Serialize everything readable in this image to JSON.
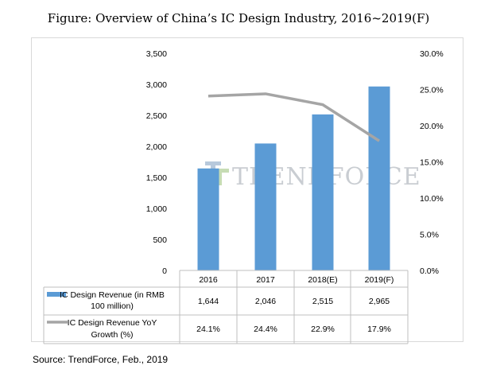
{
  "figure_title": "Figure: Overview of China’s IC Design Industry, 2016~2019(F)",
  "source": "Source: TrendForce, Feb., 2019",
  "watermark": "TRENDFORCE",
  "colors": {
    "bar": "#5b9bd5",
    "line": "#a5a5a5",
    "grid": "#bfbfbf"
  },
  "chart_data": {
    "type": "bar",
    "categories": [
      "2016",
      "2017",
      "2018(E)",
      "2019(F)"
    ],
    "series": [
      {
        "name": "IC Design Revenue (in RMB 100 million)",
        "type": "bar",
        "axis": "left",
        "values": [
          1644,
          2046,
          2515,
          2965
        ],
        "labels": [
          "1,644",
          "2,046",
          "2,515",
          "2,965"
        ]
      },
      {
        "name": "IC Design Revenue YoY Growth (%)",
        "type": "line",
        "axis": "right",
        "values": [
          24.1,
          24.4,
          22.9,
          17.9
        ],
        "labels": [
          "24.1%",
          "24.4%",
          "22.9%",
          "17.9%"
        ]
      }
    ],
    "ylim": [
      0,
      3500
    ],
    "yticks": [
      "0",
      "500",
      "1,000",
      "1,500",
      "2,000",
      "2,500",
      "3,000",
      "3,500"
    ],
    "y2lim": [
      0,
      30
    ],
    "y2ticks": [
      "0.0%",
      "5.0%",
      "10.0%",
      "15.0%",
      "20.0%",
      "25.0%",
      "30.0%"
    ],
    "grid": false,
    "legend": "data-table"
  }
}
